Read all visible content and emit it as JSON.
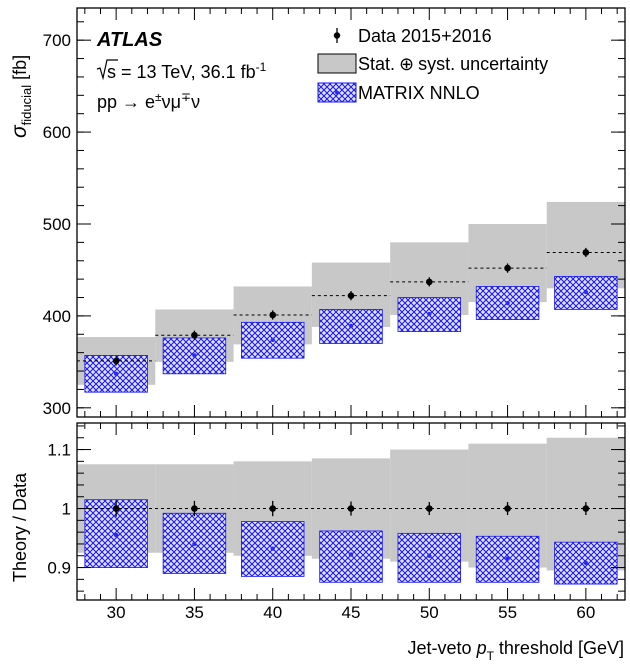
{
  "chart_data": {
    "type": "errorbar",
    "experiment": "ATLAS",
    "annotations": {
      "energy_prefix": "s",
      "energy_rest": " = 13 TeV, 36.1 fb",
      "energy_sup": "-1",
      "process_pp": "pp",
      "process_arrow": "→",
      "process_e": "e",
      "process_e_sup": "±",
      "process_nu1": "νμ",
      "process_mu_sup": "∓",
      "process_nu2": "ν"
    },
    "legend": {
      "placement": "top-right",
      "data_label": "Data 2015+2016",
      "band_label_1": "Stat.",
      "band_label_oplus": "⊕",
      "band_label_2": "syst. uncertainty",
      "theory_label": "MATRIX NNLO"
    },
    "x": [
      30,
      35,
      40,
      45,
      50,
      55,
      60
    ],
    "xlabel_prefix": "Jet-veto ",
    "xlabel_p": "p",
    "xlabel_sub": "T",
    "xlabel_suffix": " threshold [GeV]",
    "xlim": [
      27.5,
      62.5
    ],
    "xticks": [
      "30",
      "35",
      "40",
      "45",
      "50",
      "55",
      "60"
    ],
    "top_panel": {
      "ylabel_sigma": "σ",
      "ylabel_sub": "fiducial",
      "ylabel_unit": " [fb]",
      "ylim": [
        290,
        735
      ],
      "yticks": [
        "300",
        "400",
        "500",
        "600",
        "700"
      ],
      "data": {
        "values": [
          351,
          379,
          401,
          422,
          437,
          452,
          469
        ],
        "errors": [
          5,
          5,
          5,
          5,
          5,
          5,
          5
        ],
        "syst_low": [
          325,
          350,
          369,
          388,
          401,
          415,
          430
        ],
        "syst_high": [
          377,
          407,
          432,
          458,
          480,
          500,
          524
        ]
      },
      "theory": {
        "values": [
          337,
          357,
          374,
          389,
          402,
          414,
          426
        ],
        "band_low": [
          317,
          337,
          354,
          370,
          383,
          396,
          407
        ],
        "band_high": [
          357,
          376,
          393,
          407,
          420,
          432,
          443
        ]
      }
    },
    "bottom_panel": {
      "ylabel": "Theory / Data",
      "ylim": [
        0.845,
        1.145
      ],
      "yticks": [
        "0.9",
        "1",
        "1.1"
      ],
      "reference_line": 1,
      "data": {
        "values": [
          1,
          1,
          1,
          1,
          1,
          1,
          1
        ],
        "errors": [
          0.014,
          0.013,
          0.013,
          0.012,
          0.011,
          0.011,
          0.011
        ],
        "band_low": [
          0.925,
          0.925,
          0.92,
          0.915,
          0.91,
          0.9,
          0.895
        ],
        "band_high": [
          1.075,
          1.075,
          1.08,
          1.085,
          1.1,
          1.11,
          1.12
        ]
      },
      "theory": {
        "values": [
          0.955,
          0.94,
          0.932,
          0.922,
          0.92,
          0.915,
          0.908
        ],
        "band_low": [
          0.9,
          0.89,
          0.885,
          0.875,
          0.875,
          0.875,
          0.872
        ],
        "band_high": [
          1.015,
          0.992,
          0.978,
          0.962,
          0.958,
          0.953,
          0.943
        ]
      }
    },
    "colors": {
      "data": "#000000",
      "band": "#c8c8c8",
      "theory_fill": "#1515f5",
      "theory_marker": "#2a2aff"
    }
  }
}
